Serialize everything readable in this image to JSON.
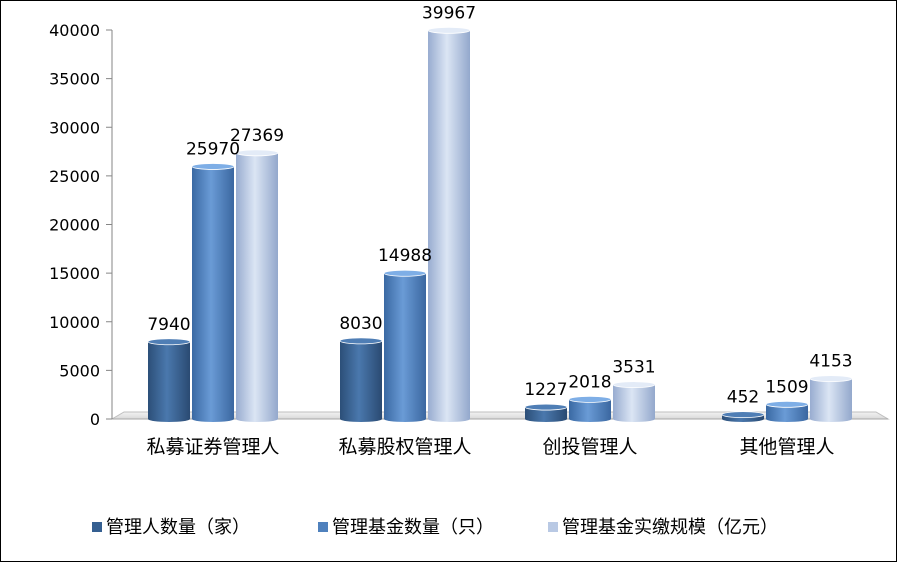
{
  "chart_data": {
    "type": "bar",
    "title": "",
    "xlabel": "",
    "ylabel": "",
    "ylim": [
      0,
      40000
    ],
    "y_ticks": [
      0,
      5000,
      10000,
      15000,
      20000,
      25000,
      30000,
      35000,
      40000
    ],
    "grid": false,
    "legend_position": "bottom",
    "categories": [
      "私募证券管理人",
      "私募股权管理人",
      "创投管理人",
      "其他管理人"
    ],
    "series": [
      {
        "name": "管理人数量（家）",
        "values": [
          7940,
          8030,
          1227,
          452
        ],
        "color": "#3d6a9c"
      },
      {
        "name": "管理基金数量（只）",
        "values": [
          25970,
          14988,
          2018,
          1509
        ],
        "color": "#4f81bd"
      },
      {
        "name": "管理基金实缴规模（亿元）",
        "values": [
          27369,
          39967,
          3531,
          4153
        ],
        "color": "#b9c9e4"
      }
    ]
  }
}
